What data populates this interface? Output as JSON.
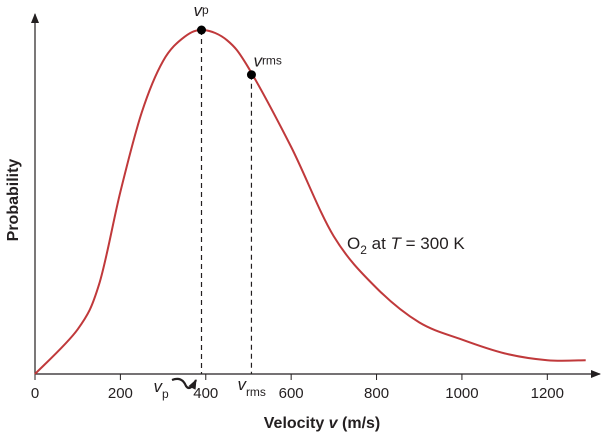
{
  "chart_data": {
    "type": "line",
    "title": "",
    "xlabel_prefix": "Velocity ",
    "xlabel_var": "v",
    "xlabel_suffix": " (m/s)",
    "ylabel": "Probability",
    "xlim": [
      0,
      1300
    ],
    "xticks": [
      "0",
      "200",
      "400",
      "600",
      "800",
      "1000",
      "1200"
    ],
    "grid": false,
    "series": [
      {
        "x": [
          0,
          100,
          150,
          200,
          250,
          300,
          350,
          395,
          450,
          500,
          600,
          700,
          800,
          900,
          1000,
          1100,
          1200,
          1290
        ],
        "y": [
          0.0,
          0.13,
          0.26,
          0.53,
          0.76,
          0.91,
          0.98,
          1.0,
          0.97,
          0.89,
          0.66,
          0.4,
          0.25,
          0.15,
          0.1,
          0.06,
          0.04,
          0.04
        ],
        "color": "#c0393b"
      }
    ],
    "markers": [
      {
        "x": 390,
        "y": 1.0,
        "label_main": "v",
        "label_sub": "p",
        "axis_label_main": "v",
        "axis_label_sub": "p"
      },
      {
        "x": 507,
        "y": 0.87,
        "label_main": "v",
        "label_sub": "rms",
        "axis_label_main": "v",
        "axis_label_sub": "rms"
      }
    ],
    "annotation": {
      "species_main": "O",
      "species_sub": "2",
      "middle": " at ",
      "var": "T",
      "rest": " = 300 K"
    }
  }
}
